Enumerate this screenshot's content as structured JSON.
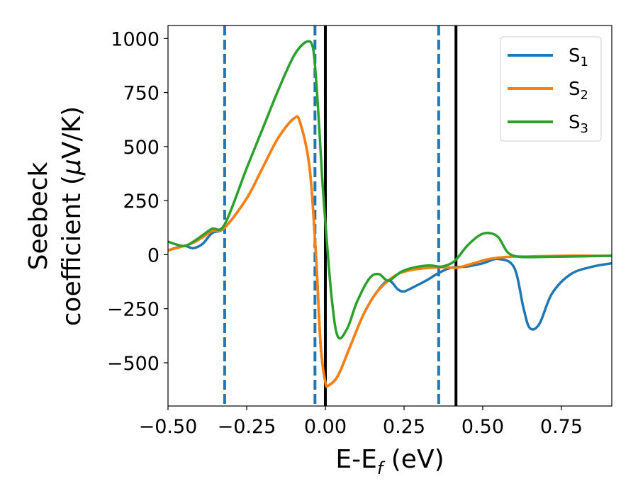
{
  "chart_data": {
    "type": "line",
    "xlabel": "E-E",
    "xlabel_sub": "f",
    "xlabel_unit": " (eV)",
    "ylabel_line1": "Seebeck",
    "ylabel_line2_pre": "coefficient  (",
    "ylabel_line2_mu": "μ",
    "ylabel_line2_post": "V/K)",
    "xlim": [
      -0.5,
      0.91
    ],
    "ylim": [
      -700,
      1060
    ],
    "xticks": [
      -0.5,
      -0.25,
      0.0,
      0.25,
      0.5,
      0.75
    ],
    "xtick_labels": [
      "−0.50",
      "−0.25",
      "0.00",
      "0.25",
      "0.50",
      "0.75"
    ],
    "yticks": [
      -500,
      -250,
      0,
      250,
      500,
      750,
      1000
    ],
    "ytick_labels": [
      "−500",
      "−250",
      "0",
      "250",
      "500",
      "750",
      "1000"
    ],
    "legend_position": "top-right",
    "grid": false,
    "vlines": [
      {
        "x": -0.32,
        "style": "dashed",
        "color": "#1f77b4"
      },
      {
        "x": -0.033,
        "style": "dashed",
        "color": "#1f77b4"
      },
      {
        "x": 0.36,
        "style": "dashed",
        "color": "#1f77b4"
      },
      {
        "x": 0.0,
        "style": "solid",
        "color": "#000000"
      },
      {
        "x": 0.415,
        "style": "solid",
        "color": "#000000"
      }
    ],
    "series": [
      {
        "name": "S",
        "sub": "1",
        "color": "#1f77b4",
        "x": [
          -0.5,
          -0.45,
          -0.42,
          -0.39,
          -0.36,
          -0.32,
          -0.25,
          -0.2,
          -0.15,
          -0.1,
          -0.08,
          -0.05,
          -0.03,
          -0.015,
          0.0,
          0.01,
          0.04,
          0.08,
          0.12,
          0.16,
          0.2,
          0.23,
          0.25,
          0.28,
          0.32,
          0.36,
          0.4,
          0.45,
          0.5,
          0.55,
          0.6,
          0.63,
          0.65,
          0.68,
          0.72,
          0.78,
          0.85,
          0.91
        ],
        "y": [
          20,
          40,
          30,
          50,
          100,
          125,
          260,
          400,
          540,
          630,
          610,
          400,
          0,
          -420,
          -590,
          -605,
          -560,
          -420,
          -280,
          -180,
          -120,
          -160,
          -170,
          -150,
          -120,
          -85,
          -60,
          -55,
          -40,
          -20,
          -60,
          -250,
          -340,
          -320,
          -180,
          -90,
          -55,
          -40
        ]
      },
      {
        "name": "S",
        "sub": "2",
        "color": "#ff7f0e",
        "x": [
          -0.5,
          -0.45,
          -0.42,
          -0.39,
          -0.36,
          -0.32,
          -0.25,
          -0.2,
          -0.15,
          -0.1,
          -0.08,
          -0.05,
          -0.03,
          -0.015,
          0.0,
          0.01,
          0.04,
          0.08,
          0.12,
          0.16,
          0.2,
          0.23,
          0.26,
          0.3,
          0.34,
          0.38,
          0.42,
          0.47,
          0.52,
          0.58,
          0.65,
          0.75,
          0.85,
          0.91
        ],
        "y": [
          20,
          40,
          55,
          80,
          110,
          125,
          260,
          400,
          540,
          630,
          610,
          400,
          0,
          -420,
          -590,
          -605,
          -560,
          -420,
          -280,
          -180,
          -120,
          -90,
          -75,
          -65,
          -60,
          -58,
          -60,
          -40,
          -20,
          -10,
          -8,
          -5,
          -5,
          -5
        ]
      },
      {
        "name": "S",
        "sub": "3",
        "color": "#2ca02c",
        "x": [
          -0.5,
          -0.45,
          -0.42,
          -0.39,
          -0.36,
          -0.32,
          -0.25,
          -0.2,
          -0.15,
          -0.1,
          -0.06,
          -0.04,
          -0.03,
          -0.02,
          -0.01,
          0.0,
          0.02,
          0.04,
          0.07,
          0.1,
          0.14,
          0.17,
          0.2,
          0.24,
          0.28,
          0.33,
          0.37,
          0.41,
          0.45,
          0.49,
          0.52,
          0.55,
          0.58,
          0.62,
          0.7,
          0.8,
          0.91
        ],
        "y": [
          60,
          40,
          60,
          90,
          120,
          140,
          400,
          580,
          760,
          920,
          985,
          960,
          820,
          600,
          350,
          150,
          -200,
          -380,
          -340,
          -220,
          -110,
          -90,
          -120,
          -80,
          -60,
          -50,
          -55,
          -30,
          40,
          90,
          100,
          80,
          10,
          -10,
          -10,
          -8,
          -5
        ]
      }
    ]
  }
}
